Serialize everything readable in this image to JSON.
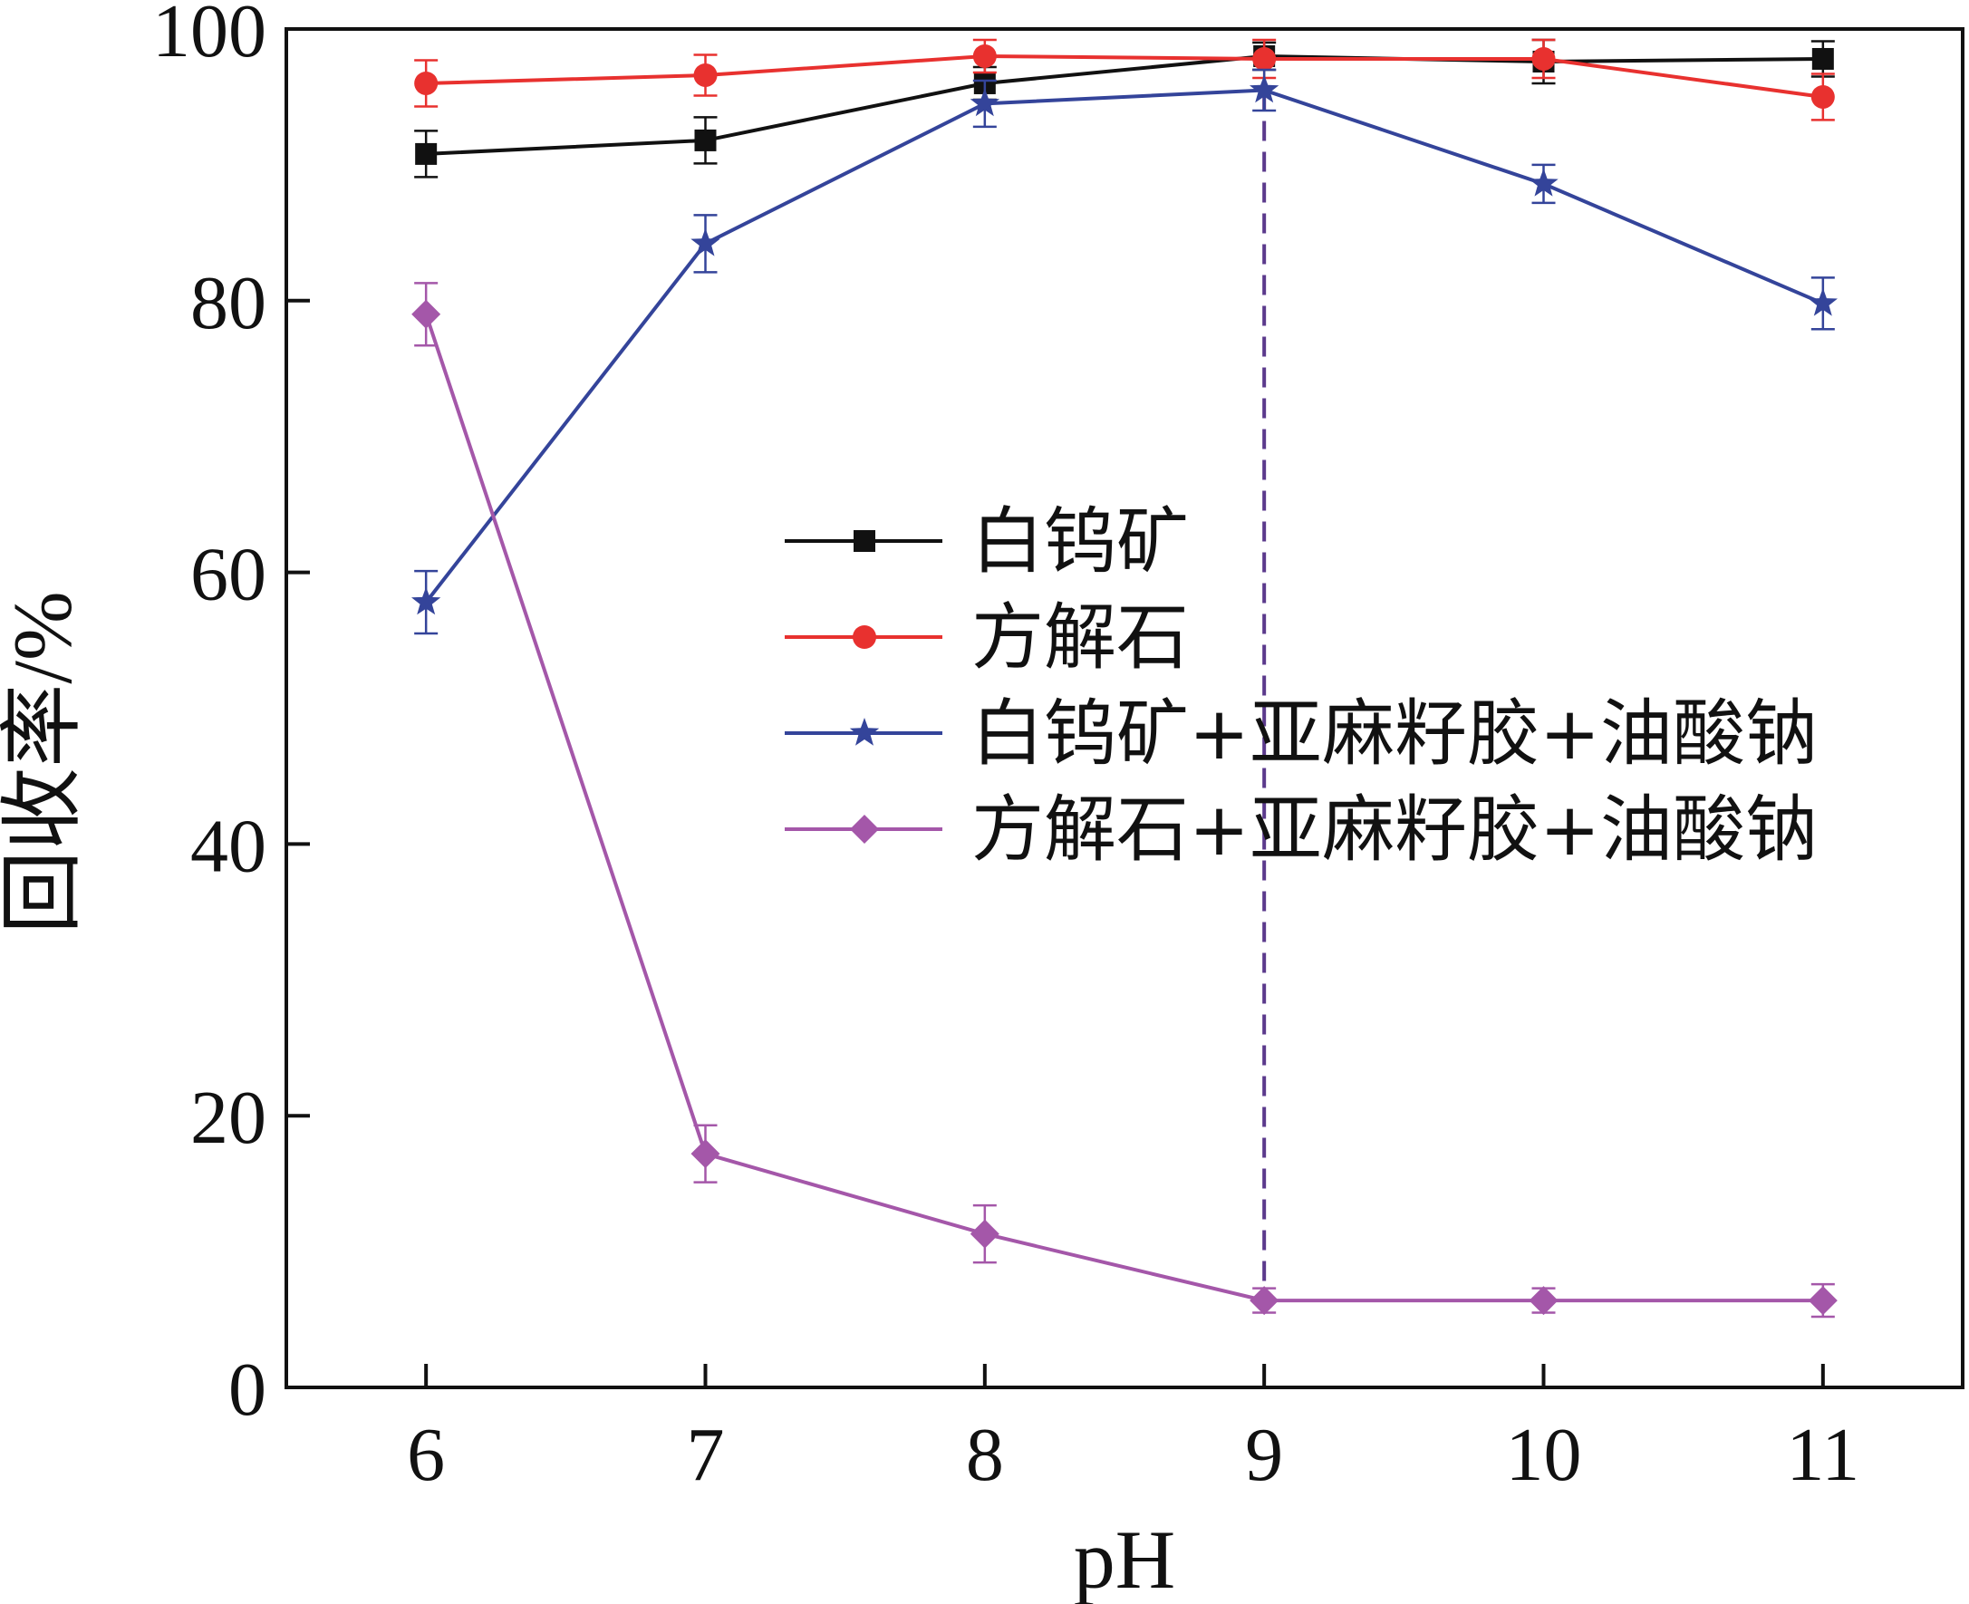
{
  "chart_data": {
    "type": "line",
    "xlabel": "pH",
    "ylabel": "回收率/%",
    "x": [
      6,
      7,
      8,
      9,
      10,
      11
    ],
    "xlim": [
      5.5,
      11.5
    ],
    "ylim": [
      0,
      100
    ],
    "xticks": [
      "6",
      "7",
      "8",
      "9",
      "10",
      "11"
    ],
    "yticks": [
      "0",
      "20",
      "40",
      "60",
      "80",
      "100"
    ],
    "reference_line": {
      "x": 9,
      "style": "dashed",
      "color": "#5b3a8c"
    },
    "legend_placement": "center-right",
    "series": [
      {
        "name": "白钨矿",
        "marker": "square",
        "color": "#111111",
        "values": [
          90.8,
          91.8,
          96.0,
          98.0,
          97.6,
          97.8
        ],
        "errors": [
          1.7,
          1.7,
          1.2,
          1.0,
          1.6,
          1.3
        ]
      },
      {
        "name": "方解石",
        "marker": "circle",
        "color": "#e8312f",
        "values": [
          96.0,
          96.6,
          98.0,
          97.8,
          97.8,
          95.0
        ],
        "errors": [
          1.7,
          1.5,
          1.2,
          1.4,
          1.4,
          1.7
        ]
      },
      {
        "name": "白钨矿+亚麻籽胶+油酸钠",
        "marker": "star",
        "color": "#34449a",
        "values": [
          57.8,
          84.2,
          94.5,
          95.5,
          88.6,
          79.8
        ],
        "errors": [
          2.3,
          2.1,
          1.7,
          1.5,
          1.4,
          1.9
        ]
      },
      {
        "name": "方解石+亚麻籽胶+油酸钠",
        "marker": "diamond",
        "color": "#a457a9",
        "values": [
          79.0,
          17.2,
          11.3,
          6.4,
          6.4,
          6.4
        ],
        "errors": [
          2.3,
          2.1,
          2.1,
          0.9,
          0.9,
          1.2
        ]
      }
    ]
  }
}
